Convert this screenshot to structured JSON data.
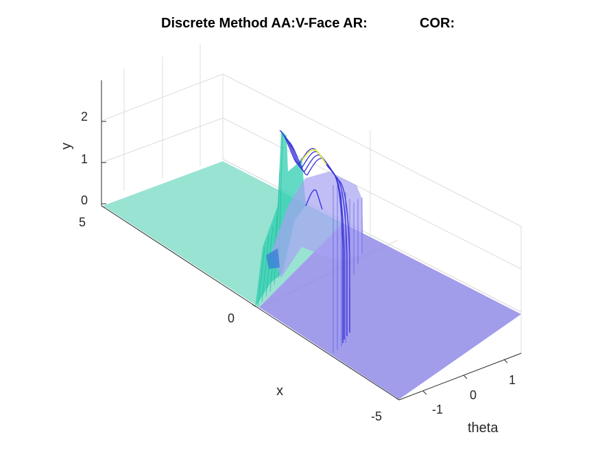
{
  "chart_data": {
    "type": "surface",
    "title_left": "Discrete Method AA:V-Face AR:",
    "title_right": "COR:",
    "xlabel": "x",
    "ylabel": "y",
    "zlabel": "theta",
    "x_ticks": [
      "5",
      "0",
      "-5"
    ],
    "y_ticks": [
      "0",
      "1",
      "2"
    ],
    "theta_ticks": [
      "-1",
      "0",
      "1"
    ],
    "xlim": [
      -5,
      5
    ],
    "ylim": [
      0,
      2.5
    ],
    "theta_lim": [
      -1.5,
      1.5
    ],
    "grid": true,
    "colors": {
      "left_surface": "#7fdcc8",
      "right_surface": "#8a85e6",
      "wall_cyan": "#2fcfb0",
      "wall_blue": "#4b45e0",
      "highlight": "#e8f04a"
    },
    "profile": {
      "description_points_theta": [
        -1.5,
        -1.2,
        -0.9,
        -0.6,
        -0.3,
        0.0,
        0.3,
        0.6,
        0.9,
        1.2,
        1.5
      ],
      "height_y": [
        2.4,
        2.3,
        1.6,
        1.0,
        0.9,
        1.9,
        2.2,
        1.6,
        0.6,
        0.2,
        0.0
      ]
    }
  }
}
